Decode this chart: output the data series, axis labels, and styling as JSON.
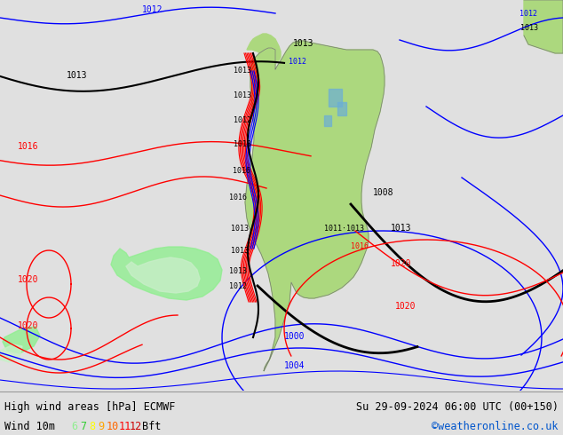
{
  "title_left": "High wind areas [hPa] ECMWF",
  "title_right": "Su 29-09-2024 06:00 UTC (00+150)",
  "subtitle_left": "Wind 10m",
  "legend_values": [
    "6",
    "7",
    "8",
    "9",
    "10",
    "11",
    "12"
  ],
  "legend_colors": [
    "#90ee90",
    "#32cd32",
    "#ffff00",
    "#ffa500",
    "#ff6600",
    "#ff0000",
    "#cc0000"
  ],
  "legend_suffix": "Bft",
  "credit": "©weatheronline.co.uk",
  "credit_color": "#0055cc",
  "bg_color": "#e0e0e0",
  "map_sea_color": "#dcdcdc",
  "land_color": "#acd87e",
  "footer_bg": "#e8e8e8",
  "footer_sep_color": "#aaaaaa"
}
